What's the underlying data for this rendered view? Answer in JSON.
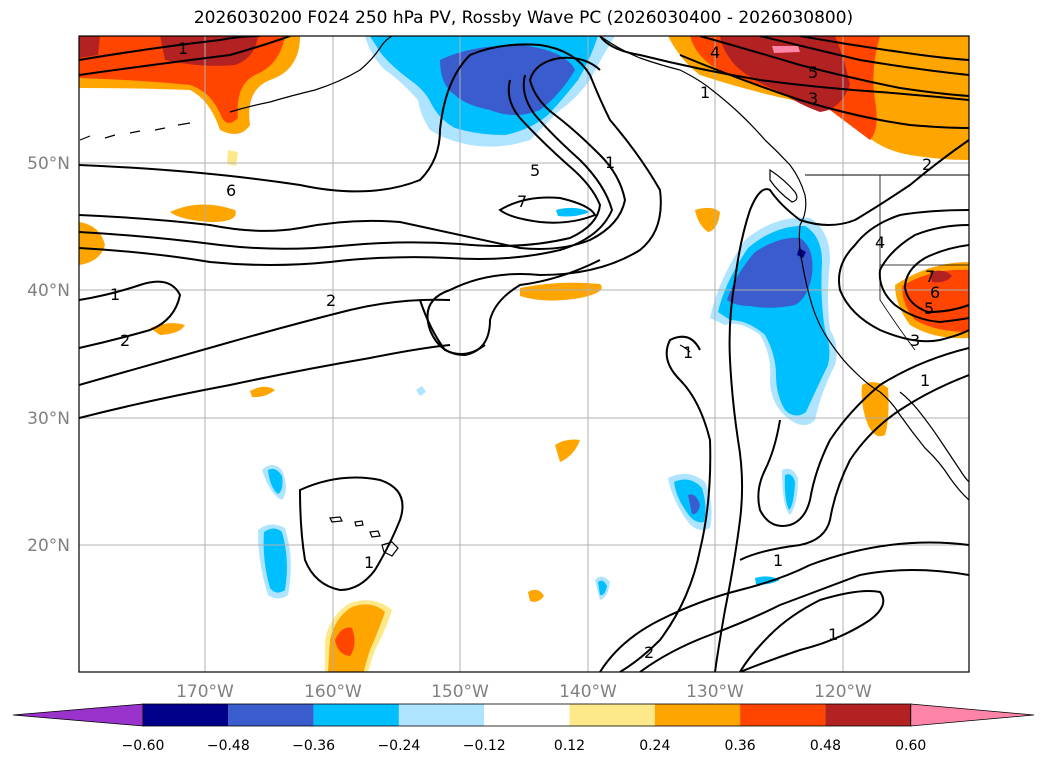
{
  "title": "2026030200 F024 250 hPa PV, Rossby Wave PC (2026030400 - 2026030800)",
  "lat_labels": [
    "50°N",
    "40°N",
    "30°N",
    "20°N"
  ],
  "lon_labels": [
    "170°W",
    "160°W",
    "150°W",
    "140°W",
    "130°W",
    "120°W"
  ],
  "colorbar": {
    "tick_labels": [
      "−0.60",
      "−0.48",
      "−0.36",
      "−0.24",
      "−0.12",
      "0.12",
      "0.24",
      "0.36",
      "0.48",
      "0.60"
    ],
    "colors": [
      "#9933cc",
      "#00008b",
      "#3a5ccc",
      "#00bfff",
      "#aee4ff",
      "#ffffff",
      "#fde98a",
      "#ffa500",
      "#ff4500",
      "#b22222",
      "#ff85a8"
    ]
  },
  "contour_labels": [
    "1",
    "4",
    "5",
    "3",
    "2",
    "6",
    "7",
    "5",
    "1",
    "1",
    "2",
    "2",
    "1",
    "4",
    "7",
    "6",
    "5",
    "3",
    "1",
    "1",
    "1",
    "1",
    "2",
    "1"
  ],
  "colors": {
    "land_outline": "#000000",
    "grid": "#b0b0b0",
    "axis_text": "#808080"
  }
}
